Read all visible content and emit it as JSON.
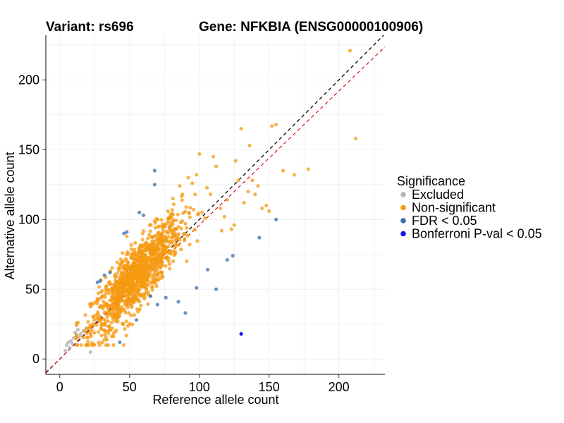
{
  "chart_data": {
    "type": "scatter",
    "title_variant": "Variant: rs696",
    "title_gene": "Gene: NFKBIA (ENSG00000100906)",
    "xlabel": "Reference allele count",
    "ylabel": "Alternative allele count",
    "xlim": [
      -10,
      233
    ],
    "ylim": [
      -11,
      232
    ],
    "xticks": [
      0,
      50,
      100,
      150,
      200
    ],
    "yticks": [
      0,
      50,
      100,
      150,
      200
    ],
    "grid": true,
    "legend": {
      "title": "Significance",
      "placement": "right",
      "entries": [
        {
          "label": "Excluded",
          "color": "#b3b3b3"
        },
        {
          "label": "Non-significant",
          "color": "#f59a12"
        },
        {
          "label": "FDR < 0.05",
          "color": "#3a6fad"
        },
        {
          "label": "Bonferroni P-val < 0.05",
          "color": "#1515e6"
        }
      ]
    },
    "reference_lines": [
      {
        "name": "identity",
        "slope": 1.0,
        "intercept": 0,
        "color": "#000000",
        "dash": "dashed"
      },
      {
        "name": "fitted",
        "slope": 0.96,
        "intercept": 0,
        "color": "#e0202a",
        "dash": "dashed"
      }
    ],
    "series": [
      {
        "name": "Excluded",
        "color": "#b3b3b3",
        "x": [
          4,
          5,
          6,
          7,
          8,
          10,
          11,
          12,
          13,
          15,
          17,
          20,
          22,
          9,
          14
        ],
        "y": [
          6,
          10,
          12,
          8,
          13,
          15,
          19,
          17,
          21,
          18,
          20,
          22,
          5,
          11,
          16
        ]
      },
      {
        "name": "Non-significant",
        "color": "#f59a12",
        "x": [
          208,
          212,
          155,
          152,
          130,
          136,
          160,
          168,
          178,
          100,
          110,
          128,
          142,
          140,
          132,
          125,
          118,
          145,
          150,
          88,
          95,
          108,
          115,
          123,
          138,
          102,
          120,
          98,
          112,
          126,
          90,
          96,
          104,
          116,
          81,
          86,
          92,
          148,
          135
        ],
        "y": [
          221,
          158,
          168,
          167,
          165,
          153,
          135,
          132,
          136,
          147,
          145,
          128,
          124,
          118,
          112,
          96,
          102,
          108,
          106,
          118,
          126,
          118,
          108,
          93,
          128,
          105,
          114,
          132,
          138,
          142,
          97,
          107,
          101,
          92,
          115,
          124,
          130,
          110,
          120
        ],
        "cluster": {
          "center_x": 55,
          "center_y": 62,
          "x_range": [
            12,
            130
          ],
          "y_range": [
            10,
            140
          ],
          "approx_count": 1200
        }
      },
      {
        "name": "FDR < 0.05",
        "color": "#3a6fad",
        "x": [
          68,
          68,
          155,
          143,
          112,
          124,
          120,
          98,
          65,
          55,
          43,
          46,
          57,
          32,
          27,
          70,
          90,
          48,
          60,
          36,
          29,
          76,
          85,
          106
        ],
        "y": [
          135,
          125,
          100,
          87,
          50,
          74,
          71,
          51,
          45,
          28,
          12,
          90,
          105,
          60,
          55,
          39,
          33,
          91,
          103,
          62,
          56,
          44,
          41,
          64
        ]
      },
      {
        "name": "Bonferroni P-val < 0.05",
        "color": "#1515e6",
        "x": [
          130
        ],
        "y": [
          18
        ]
      }
    ]
  }
}
